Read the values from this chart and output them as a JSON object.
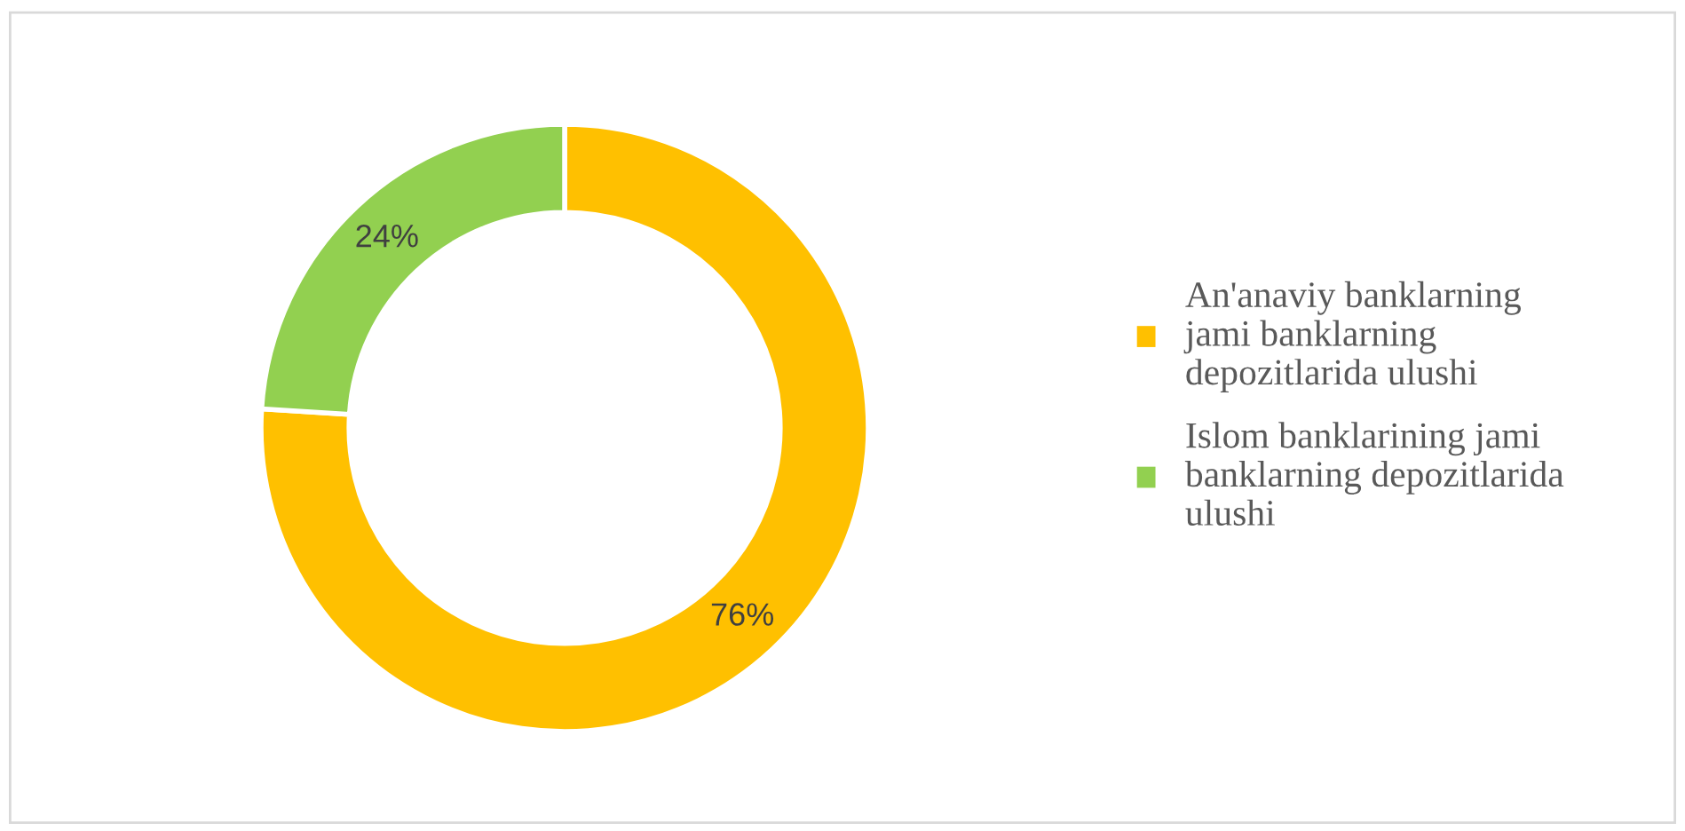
{
  "chart_data": {
    "type": "donut",
    "categories": [
      "An'anaviy banklarning jami banklarning depozitlarida ulushi",
      "Islom banklarining jami banklarning depozitlarida ulushi"
    ],
    "values": [
      76,
      24
    ],
    "colors": [
      "#ffc000",
      "#92d050"
    ],
    "value_labels": [
      "76%",
      "24%"
    ],
    "legend": "right"
  }
}
